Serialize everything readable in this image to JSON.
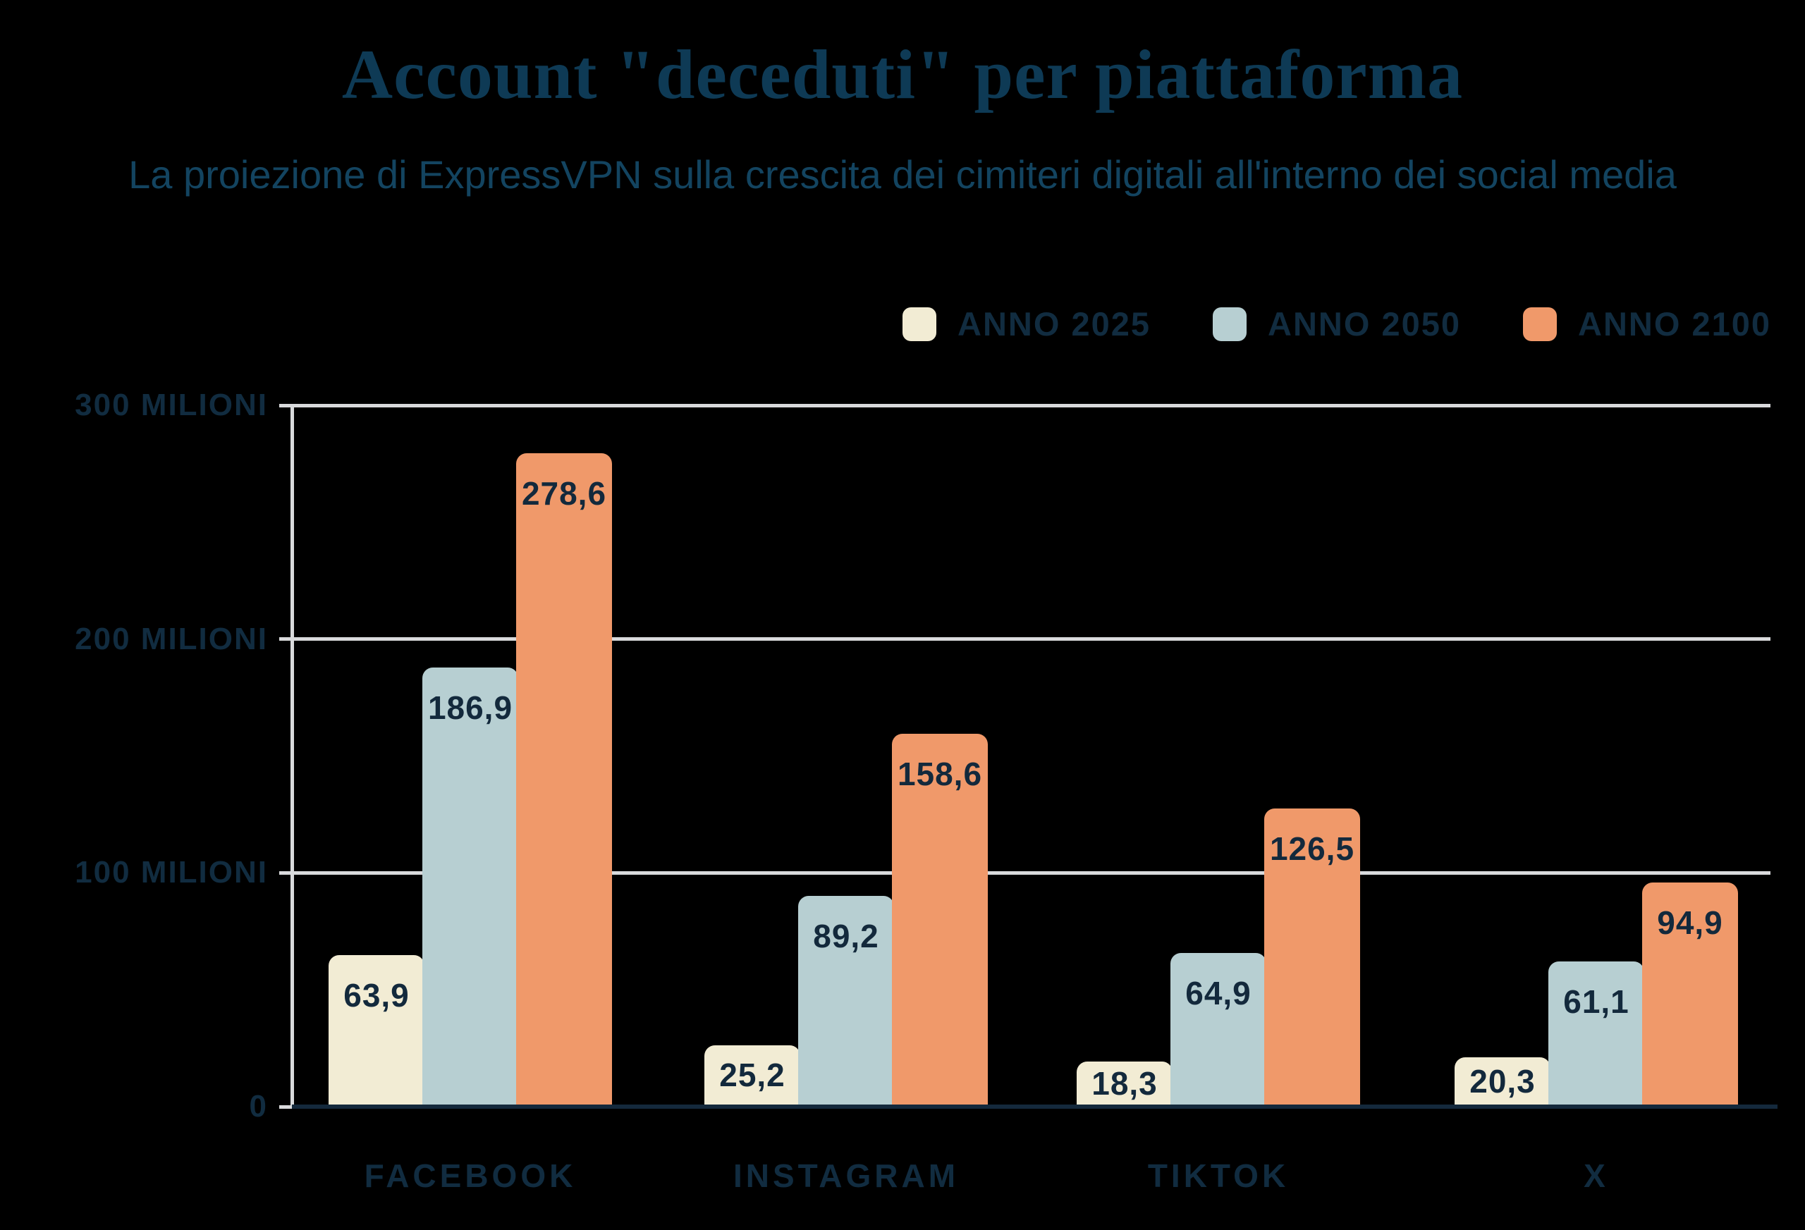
{
  "title": "Account \"deceduti\" per piattaforma",
  "subtitle": "La proiezione di ExpressVPN sulla crescita dei cimiteri digitali all'interno dei social media",
  "colors": {
    "background": "#000000",
    "title_text": "#0e3a55",
    "subtitle_text": "#134460",
    "axis_text": "#112c40",
    "value_text": "#13293c",
    "gridline": "#d9dadc",
    "baseline": "#14293c",
    "series_2025": "#f2ecd4",
    "series_2050": "#b7cfd2",
    "series_2100": "#f0996a"
  },
  "chart_data": {
    "type": "bar",
    "title": "Account \"deceduti\" per piattaforma",
    "subtitle": "La proiezione di ExpressVPN sulla crescita dei cimiteri digitali all'interno dei social media",
    "categories": [
      "FACEBOOK",
      "INSTAGRAM",
      "TIKTOK",
      "X"
    ],
    "series": [
      {
        "name": "ANNO 2025",
        "color": "#f2ecd4",
        "values": [
          63.9,
          25.2,
          18.3,
          20.3
        ],
        "labels": [
          "63,9",
          "25,2",
          "18,3",
          "20,3"
        ]
      },
      {
        "name": "ANNO 2050",
        "color": "#b7cfd2",
        "values": [
          186.9,
          89.2,
          64.9,
          61.1
        ],
        "labels": [
          "186,9",
          "89,2",
          "64,9",
          "61,1"
        ]
      },
      {
        "name": "ANNO 2100",
        "color": "#f0996a",
        "values": [
          278.6,
          158.6,
          126.5,
          94.9
        ],
        "labels": [
          "278,6",
          "158,6",
          "126,5",
          "94,9"
        ]
      }
    ],
    "ylim": [
      0,
      300
    ],
    "yticks": [
      {
        "value": 300,
        "label": "300 MILIONI"
      },
      {
        "value": 200,
        "label": "200 MILIONI"
      },
      {
        "value": 100,
        "label": "100 MILIONI"
      },
      {
        "value": 0,
        "label": "0"
      }
    ],
    "grid": true,
    "legend_position": "top-right",
    "value_label_position": "inside-top",
    "unit": "milioni di account"
  }
}
